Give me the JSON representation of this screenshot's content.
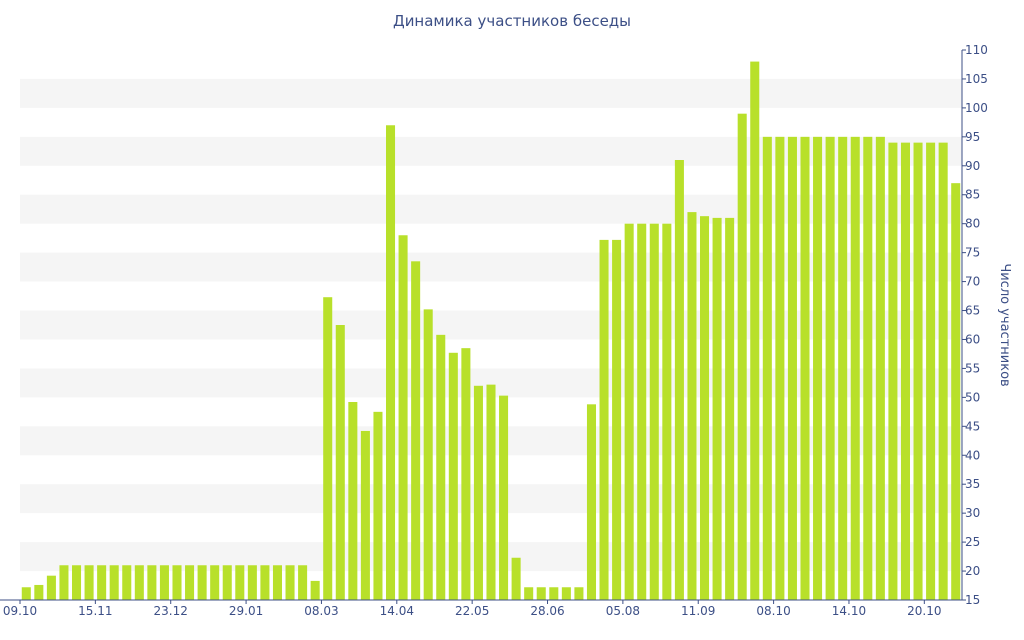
{
  "chart_data": {
    "type": "bar",
    "title": "Динамика участников беседы",
    "xlabel": "",
    "ylabel": "Число участников",
    "ylim": [
      15,
      110
    ],
    "ytick_step": 5,
    "grid": "alternating horizontal bands",
    "bar_color": "#b8e02a",
    "band_color": "#f5f5f5",
    "text_color": "#3c4f86",
    "x_tick_labels": [
      "09.10",
      "15.11",
      "23.12",
      "29.01",
      "08.03",
      "14.04",
      "22.05",
      "28.06",
      "05.08",
      "11.09",
      "08.10",
      "14.10",
      "20.10"
    ],
    "x_tick_bar_index": [
      0,
      6,
      12,
      18,
      24,
      30,
      36,
      42,
      48,
      54,
      60,
      66,
      72
    ],
    "values": [
      17.2,
      17.6,
      19.2,
      21,
      21,
      21,
      21,
      21,
      21,
      21,
      21,
      21,
      21,
      21,
      21,
      21,
      21,
      21,
      21,
      21,
      21,
      21,
      21,
      18.3,
      67.3,
      62.5,
      49.2,
      44.2,
      47.5,
      97,
      78,
      73.5,
      65.2,
      60.8,
      57.7,
      58.5,
      52,
      52.2,
      50.3,
      22.3,
      17.2,
      17.2,
      17.2,
      17.2,
      17.2,
      48.8,
      77.2,
      77.2,
      80,
      80,
      80,
      80,
      91,
      82,
      81.3,
      81,
      81,
      99,
      108,
      95,
      95,
      95,
      95,
      95,
      95,
      95,
      95,
      95,
      95,
      94,
      94,
      94,
      94,
      94,
      87
    ]
  }
}
